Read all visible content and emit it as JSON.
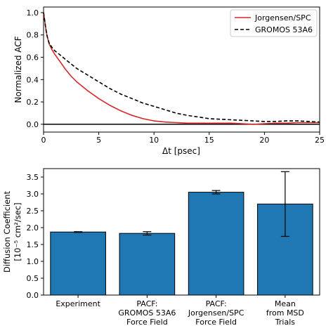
{
  "chart_data": [
    {
      "type": "line",
      "xlabel": "Δt [psec]",
      "ylabel": "Normalized ACF",
      "xlim": [
        0,
        25
      ],
      "ylim": [
        -0.07,
        1.05
      ],
      "xticks": [
        0,
        5,
        10,
        15,
        20,
        25
      ],
      "yticks": [
        0.0,
        0.2,
        0.4,
        0.6,
        0.8,
        1.0
      ],
      "ytick_labels": [
        "0.0",
        "0.2",
        "0.4",
        "0.6",
        "0.8",
        "1.0"
      ],
      "grid": false,
      "legend_position": "top-right",
      "reference_line_y": 0,
      "series": [
        {
          "name": "Jorgensen/SPC",
          "color": "#d62728",
          "style": "solid",
          "x": [
            0,
            0.1,
            0.2,
            0.3,
            0.4,
            0.5,
            0.75,
            1,
            1.5,
            2,
            2.5,
            3,
            4,
            5,
            6,
            7,
            8,
            9,
            10,
            11,
            12,
            13,
            14,
            15,
            16,
            17,
            18,
            19,
            20,
            21,
            22,
            23,
            24,
            25
          ],
          "y": [
            1.0,
            0.93,
            0.86,
            0.8,
            0.76,
            0.72,
            0.67,
            0.63,
            0.56,
            0.49,
            0.43,
            0.38,
            0.3,
            0.23,
            0.17,
            0.12,
            0.08,
            0.05,
            0.03,
            0.02,
            0.015,
            0.01,
            0.01,
            0.01,
            0.01,
            0.01,
            0.005,
            0.0,
            0.005,
            0.01,
            0.01,
            0.015,
            0.015,
            0.015
          ]
        },
        {
          "name": "GROMOS 53A6",
          "color": "#000000",
          "style": "dashed",
          "x": [
            0,
            0.1,
            0.2,
            0.3,
            0.4,
            0.5,
            0.75,
            1,
            1.5,
            2,
            2.5,
            3,
            4,
            5,
            6,
            7,
            8,
            9,
            10,
            11,
            12,
            13,
            14,
            15,
            16,
            17,
            18,
            19,
            20,
            21,
            22,
            23,
            24,
            25
          ],
          "y": [
            1.0,
            0.93,
            0.86,
            0.8,
            0.76,
            0.73,
            0.69,
            0.66,
            0.62,
            0.58,
            0.54,
            0.5,
            0.44,
            0.38,
            0.32,
            0.27,
            0.23,
            0.19,
            0.16,
            0.13,
            0.1,
            0.08,
            0.065,
            0.05,
            0.045,
            0.04,
            0.035,
            0.03,
            0.025,
            0.025,
            0.03,
            0.03,
            0.025,
            0.02
          ]
        }
      ]
    },
    {
      "type": "bar",
      "ylabel": "Diffusion Coefficient",
      "ylabel2": "[10⁻⁵ cm²/sec]",
      "ylim": [
        0,
        3.75
      ],
      "yticks": [
        0.0,
        0.5,
        1.0,
        1.5,
        2.0,
        2.5,
        3.0,
        3.5
      ],
      "ytick_labels": [
        "0.0",
        "0.5",
        "1.0",
        "1.5",
        "2.0",
        "2.5",
        "3.0",
        "3.5"
      ],
      "bar_color": "#1f77b4",
      "categories": [
        [
          "Experiment"
        ],
        [
          "PACF:",
          "GROMOS 53A6",
          "Force Field"
        ],
        [
          "PACF:",
          "Jorgensen/SPC",
          "Force Field"
        ],
        [
          "Mean",
          "from MSD",
          "Trials"
        ]
      ],
      "values": [
        1.87,
        1.83,
        3.05,
        2.7
      ],
      "errors": [
        0.01,
        0.05,
        0.05,
        0.96
      ]
    }
  ]
}
